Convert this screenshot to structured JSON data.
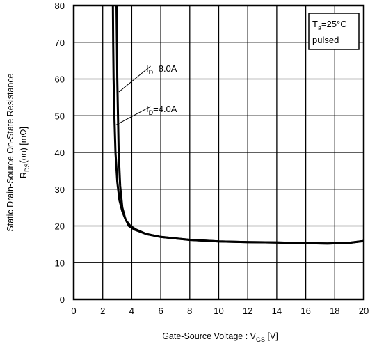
{
  "chart_data": {
    "type": "line",
    "xlabel": "Gate-Source Voltage : V",
    "xlabel_sub": "GS",
    "xlabel_unit": " [V]",
    "ylabel_line1": "Static Drain-Source On-State Resistance",
    "ylabel_line2_main": "R",
    "ylabel_line2_sub": "DS",
    "ylabel_line2_rest": "(on) [mΩ]",
    "xlim": [
      0,
      20
    ],
    "ylim": [
      0,
      80
    ],
    "xticks": [
      "0",
      "2",
      "4",
      "6",
      "8",
      "10",
      "12",
      "14",
      "16",
      "18",
      "20"
    ],
    "yticks": [
      "0",
      "10",
      "20",
      "30",
      "40",
      "50",
      "60",
      "70",
      "80"
    ],
    "x_grid_values": [
      2,
      4,
      6,
      8,
      10,
      12,
      14,
      16,
      18
    ],
    "grid": true,
    "legend_box": {
      "line1_main": "T",
      "line1_sub": "a",
      "line1_rest": "=25°C",
      "line2": "pulsed",
      "placement": "top-right"
    },
    "series": [
      {
        "label_main": "I",
        "label_sub": "D",
        "label_rest": "=8.0A",
        "x": [
          2.95,
          2.98,
          3.0,
          3.05,
          3.1,
          3.2,
          3.35,
          3.55,
          3.8,
          4.2,
          5,
          6,
          8,
          10,
          12,
          14,
          16,
          17.5,
          19,
          20
        ],
        "y": [
          80,
          70,
          60,
          50,
          40,
          31,
          25,
          22,
          20,
          19,
          17.8,
          17,
          16.2,
          15.8,
          15.6,
          15.5,
          15.3,
          15.2,
          15.4,
          15.9
        ]
      },
      {
        "label_main": "I",
        "label_sub": "D",
        "label_rest": "=4.0A",
        "x": [
          2.7,
          2.72,
          2.75,
          2.8,
          2.88,
          3.0,
          3.15,
          3.35,
          3.6,
          3.9,
          4.3,
          5,
          6,
          8,
          10,
          12,
          14,
          16,
          17.5,
          19,
          20
        ],
        "y": [
          80,
          70,
          60,
          50,
          40,
          32,
          27,
          24,
          21.5,
          20,
          19,
          17.8,
          17,
          16.2,
          15.8,
          15.6,
          15.5,
          15.3,
          15.2,
          15.4,
          15.9
        ]
      }
    ]
  }
}
